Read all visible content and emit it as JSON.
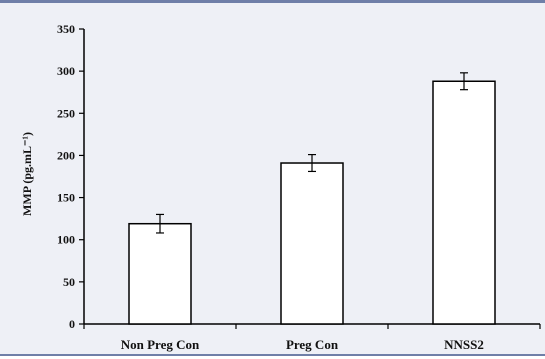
{
  "chart_data": {
    "type": "bar",
    "categories": [
      "Non Preg Con",
      "Preg Con",
      "NNSS2"
    ],
    "values": [
      119,
      191,
      288
    ],
    "error": [
      11,
      10,
      10
    ],
    "ylabel": "MMP (pg.mL⁻¹)",
    "ylim": [
      0,
      350
    ],
    "yticks": [
      0,
      50,
      100,
      150,
      200,
      250,
      300,
      350
    ],
    "grid": false,
    "legend": "none",
    "bar_fill": "#ffffff",
    "bar_stroke": "#000000"
  }
}
